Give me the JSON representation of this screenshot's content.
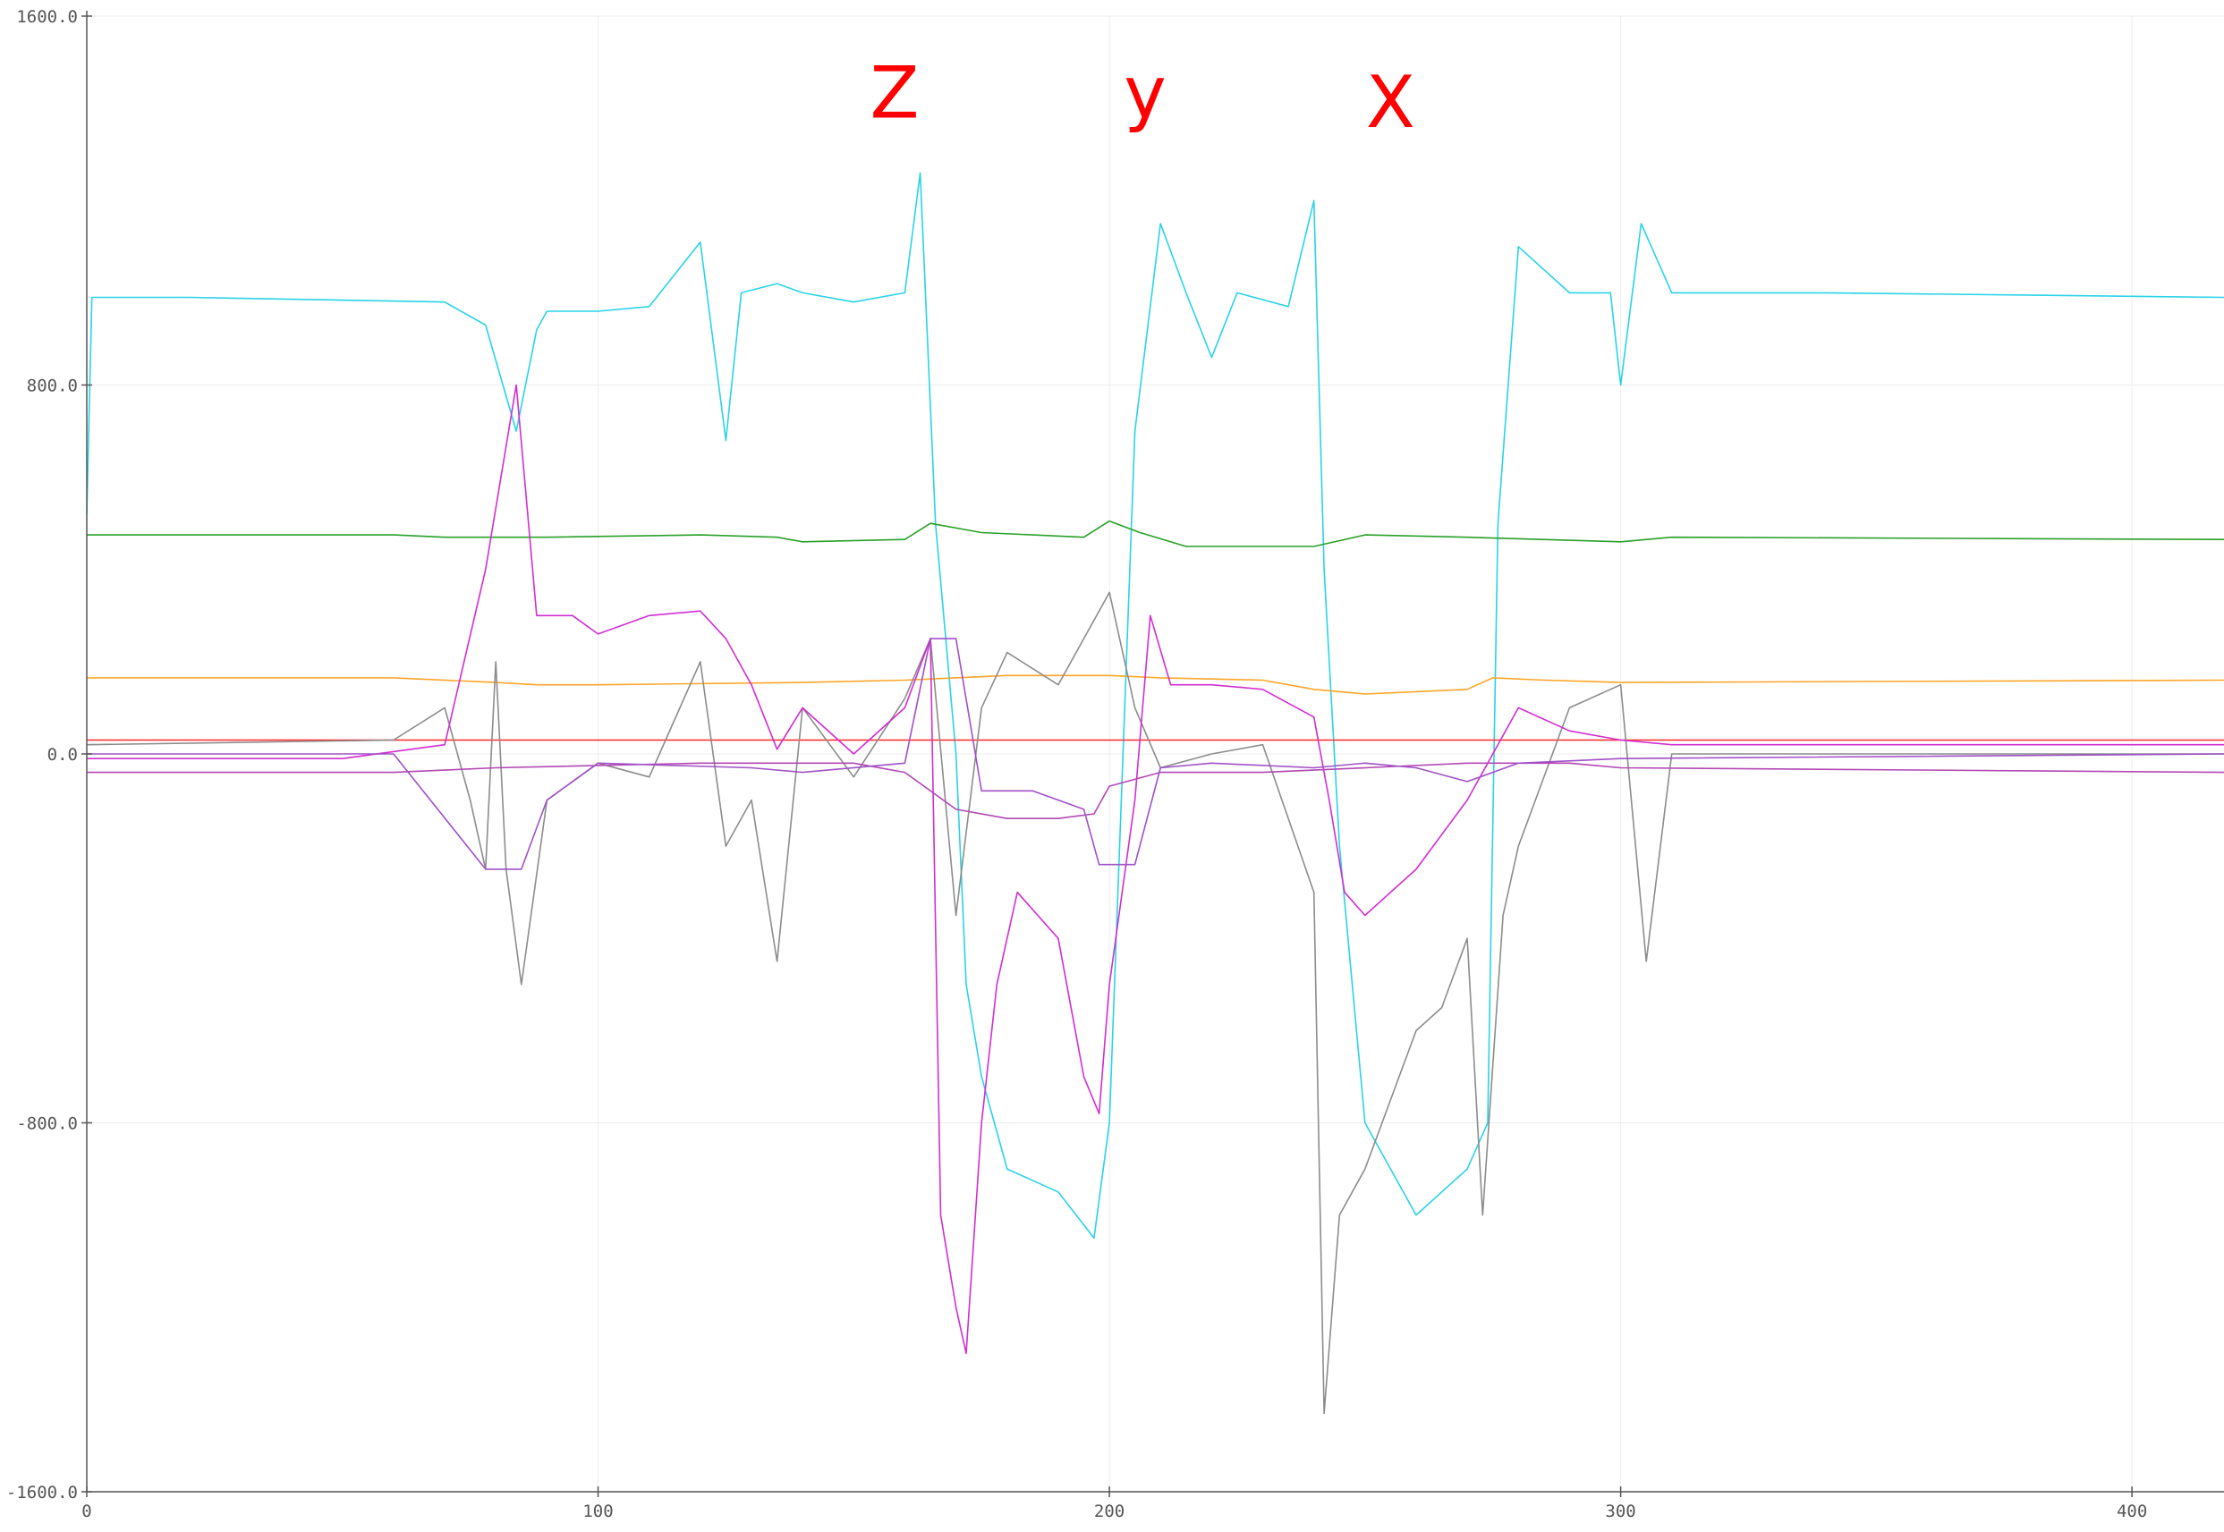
{
  "chart_data": {
    "type": "line",
    "title": "",
    "xlabel": "",
    "ylabel": "",
    "xlim": [
      0,
      418
    ],
    "ylim": [
      -1600,
      1600
    ],
    "grid": true,
    "legend": "none",
    "x_ticks": [
      0,
      100,
      200,
      300,
      400
    ],
    "x_tick_labels": [
      "0",
      "100",
      "200",
      "300",
      "400"
    ],
    "y_ticks": [
      1600,
      800,
      0,
      -800,
      -1600
    ],
    "y_tick_labels": [
      "1600.0",
      "800.0",
      "0.0",
      "-800.0",
      "-1600.0"
    ],
    "annotations": [
      {
        "text": "Z",
        "x": 158,
        "y": 1380,
        "color": "#ff0000"
      },
      {
        "text": "y",
        "x": 207,
        "y": 1380,
        "color": "#ff0000"
      },
      {
        "text": "X",
        "x": 255,
        "y": 1360,
        "color": "#ff0000"
      }
    ],
    "series": [
      {
        "color": "#29d3e8",
        "points": [
          [
            0,
            520
          ],
          [
            1,
            990
          ],
          [
            20,
            990
          ],
          [
            70,
            980
          ],
          [
            78,
            930
          ],
          [
            84,
            700
          ],
          [
            88,
            920
          ],
          [
            90,
            960
          ],
          [
            100,
            960
          ],
          [
            110,
            970
          ],
          [
            120,
            1110
          ],
          [
            125,
            680
          ],
          [
            128,
            1000
          ],
          [
            135,
            1020
          ],
          [
            140,
            1000
          ],
          [
            150,
            980
          ],
          [
            160,
            1000
          ],
          [
            163,
            1260
          ],
          [
            166,
            500
          ],
          [
            170,
            0
          ],
          [
            172,
            -500
          ],
          [
            175,
            -700
          ],
          [
            180,
            -900
          ],
          [
            190,
            -950
          ],
          [
            197,
            -1050
          ],
          [
            200,
            -800
          ],
          [
            205,
            700
          ],
          [
            210,
            1150
          ],
          [
            215,
            1000
          ],
          [
            220,
            860
          ],
          [
            225,
            1000
          ],
          [
            235,
            970
          ],
          [
            240,
            1200
          ],
          [
            242,
            400
          ],
          [
            245,
            -200
          ],
          [
            250,
            -800
          ],
          [
            255,
            -900
          ],
          [
            260,
            -1000
          ],
          [
            265,
            -950
          ],
          [
            270,
            -900
          ],
          [
            274,
            -800
          ],
          [
            276,
            500
          ],
          [
            280,
            1100
          ],
          [
            290,
            1000
          ],
          [
            298,
            1000
          ],
          [
            300,
            800
          ],
          [
            304,
            1150
          ],
          [
            310,
            1000
          ],
          [
            340,
            1000
          ],
          [
            418,
            990
          ]
        ]
      },
      {
        "color": "#28a028",
        "points": [
          [
            0,
            475
          ],
          [
            60,
            475
          ],
          [
            70,
            470
          ],
          [
            90,
            470
          ],
          [
            120,
            475
          ],
          [
            135,
            470
          ],
          [
            140,
            460
          ],
          [
            160,
            465
          ],
          [
            165,
            500
          ],
          [
            175,
            480
          ],
          [
            195,
            470
          ],
          [
            200,
            505
          ],
          [
            206,
            480
          ],
          [
            215,
            450
          ],
          [
            240,
            450
          ],
          [
            250,
            475
          ],
          [
            270,
            470
          ],
          [
            300,
            460
          ],
          [
            310,
            470
          ],
          [
            418,
            465
          ]
        ]
      },
      {
        "color": "#ffa528",
        "points": [
          [
            0,
            165
          ],
          [
            60,
            165
          ],
          [
            80,
            155
          ],
          [
            88,
            150
          ],
          [
            100,
            150
          ],
          [
            140,
            155
          ],
          [
            160,
            160
          ],
          [
            180,
            170
          ],
          [
            200,
            170
          ],
          [
            210,
            165
          ],
          [
            230,
            160
          ],
          [
            240,
            140
          ],
          [
            250,
            130
          ],
          [
            260,
            135
          ],
          [
            270,
            140
          ],
          [
            275,
            165
          ],
          [
            285,
            160
          ],
          [
            300,
            155
          ],
          [
            418,
            160
          ]
        ]
      },
      {
        "color": "#ff2828",
        "points": [
          [
            0,
            30
          ],
          [
            100,
            30
          ],
          [
            200,
            30
          ],
          [
            300,
            30
          ],
          [
            418,
            30
          ]
        ]
      },
      {
        "color": "#8c8c8c",
        "points": [
          [
            0,
            20
          ],
          [
            60,
            30
          ],
          [
            70,
            100
          ],
          [
            75,
            -100
          ],
          [
            78,
            -250
          ],
          [
            80,
            200
          ],
          [
            82,
            -250
          ],
          [
            85,
            -500
          ],
          [
            90,
            -100
          ],
          [
            100,
            -20
          ],
          [
            110,
            -50
          ],
          [
            120,
            200
          ],
          [
            125,
            -200
          ],
          [
            130,
            -100
          ],
          [
            135,
            -450
          ],
          [
            140,
            100
          ],
          [
            150,
            -50
          ],
          [
            160,
            120
          ],
          [
            165,
            250
          ],
          [
            170,
            -350
          ],
          [
            175,
            100
          ],
          [
            180,
            220
          ],
          [
            190,
            150
          ],
          [
            200,
            350
          ],
          [
            205,
            100
          ],
          [
            210,
            -30
          ],
          [
            220,
            0
          ],
          [
            230,
            20
          ],
          [
            240,
            -300
          ],
          [
            242,
            -1430
          ],
          [
            245,
            -1000
          ],
          [
            250,
            -900
          ],
          [
            260,
            -600
          ],
          [
            265,
            -550
          ],
          [
            270,
            -400
          ],
          [
            273,
            -1000
          ],
          [
            277,
            -350
          ],
          [
            280,
            -200
          ],
          [
            290,
            100
          ],
          [
            300,
            150
          ],
          [
            305,
            -450
          ],
          [
            310,
            0
          ],
          [
            340,
            0
          ],
          [
            418,
            0
          ]
        ]
      },
      {
        "color": "#d22dd2",
        "points": [
          [
            0,
            -10
          ],
          [
            50,
            -10
          ],
          [
            70,
            20
          ],
          [
            78,
            400
          ],
          [
            84,
            800
          ],
          [
            88,
            300
          ],
          [
            95,
            300
          ],
          [
            100,
            260
          ],
          [
            110,
            300
          ],
          [
            120,
            310
          ],
          [
            125,
            250
          ],
          [
            130,
            150
          ],
          [
            135,
            10
          ],
          [
            140,
            100
          ],
          [
            150,
            0
          ],
          [
            160,
            100
          ],
          [
            165,
            250
          ],
          [
            167,
            -1000
          ],
          [
            170,
            -1200
          ],
          [
            172,
            -1300
          ],
          [
            175,
            -800
          ],
          [
            178,
            -500
          ],
          [
            182,
            -300
          ],
          [
            190,
            -400
          ],
          [
            195,
            -700
          ],
          [
            198,
            -780
          ],
          [
            200,
            -500
          ],
          [
            205,
            -100
          ],
          [
            208,
            300
          ],
          [
            212,
            150
          ],
          [
            220,
            150
          ],
          [
            230,
            140
          ],
          [
            240,
            80
          ],
          [
            243,
            -100
          ],
          [
            246,
            -300
          ],
          [
            250,
            -350
          ],
          [
            260,
            -250
          ],
          [
            270,
            -100
          ],
          [
            280,
            100
          ],
          [
            290,
            50
          ],
          [
            300,
            30
          ],
          [
            310,
            20
          ],
          [
            418,
            20
          ]
        ]
      },
      {
        "color": "#b446b4",
        "points": [
          [
            0,
            -40
          ],
          [
            60,
            -40
          ],
          [
            80,
            -30
          ],
          [
            120,
            -20
          ],
          [
            150,
            -20
          ],
          [
            160,
            -40
          ],
          [
            170,
            -120
          ],
          [
            180,
            -140
          ],
          [
            190,
            -140
          ],
          [
            197,
            -130
          ],
          [
            200,
            -70
          ],
          [
            210,
            -40
          ],
          [
            230,
            -40
          ],
          [
            250,
            -30
          ],
          [
            270,
            -20
          ],
          [
            290,
            -20
          ],
          [
            300,
            -30
          ],
          [
            418,
            -40
          ]
        ]
      },
      {
        "color": "#a050c8",
        "points": [
          [
            0,
            0
          ],
          [
            60,
            0
          ],
          [
            78,
            -250
          ],
          [
            85,
            -250
          ],
          [
            90,
            -100
          ],
          [
            100,
            -20
          ],
          [
            130,
            -30
          ],
          [
            140,
            -40
          ],
          [
            160,
            -20
          ],
          [
            165,
            250
          ],
          [
            170,
            250
          ],
          [
            175,
            -80
          ],
          [
            185,
            -80
          ],
          [
            195,
            -120
          ],
          [
            198,
            -240
          ],
          [
            205,
            -240
          ],
          [
            210,
            -30
          ],
          [
            220,
            -20
          ],
          [
            240,
            -30
          ],
          [
            250,
            -20
          ],
          [
            260,
            -30
          ],
          [
            270,
            -60
          ],
          [
            280,
            -20
          ],
          [
            300,
            -10
          ],
          [
            418,
            0
          ]
        ]
      }
    ]
  }
}
